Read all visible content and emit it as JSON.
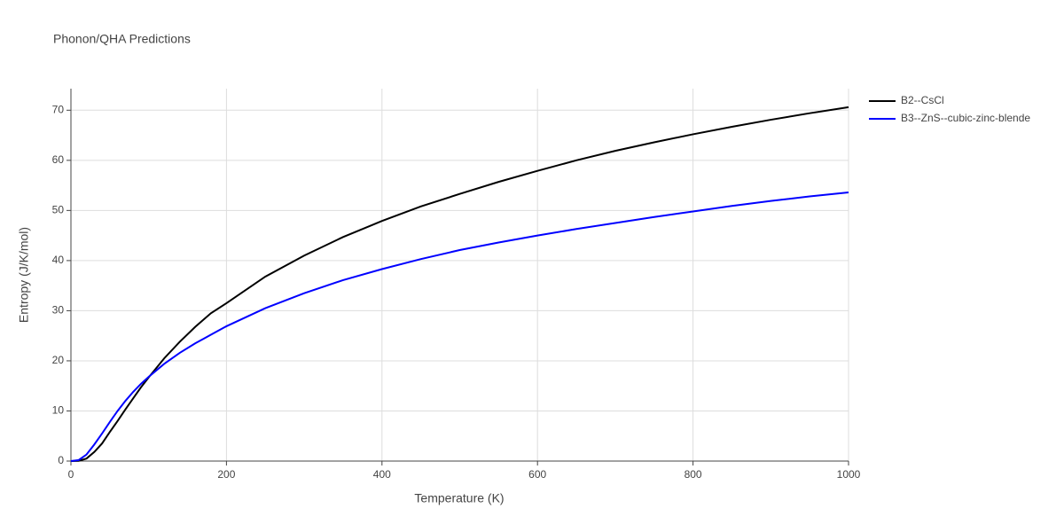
{
  "chart_data": {
    "type": "line",
    "title": "Phonon/QHA Predictions",
    "xlabel": "Temperature (K)",
    "ylabel": "Entropy (J/K/mol)",
    "x": [
      0,
      10,
      20,
      30,
      40,
      50,
      60,
      70,
      80,
      90,
      100,
      120,
      140,
      160,
      180,
      200,
      250,
      300,
      350,
      400,
      450,
      500,
      550,
      600,
      650,
      700,
      750,
      800,
      850,
      900,
      950,
      1000
    ],
    "series": [
      {
        "name": "B2--CsCl",
        "color": "#000000",
        "values": [
          0,
          0.05,
          0.5,
          1.8,
          3.5,
          5.8,
          8,
          10.3,
          12.5,
          14.7,
          16.7,
          20.5,
          23.8,
          26.8,
          29.5,
          31.5,
          36.8,
          41,
          44.7,
          47.9,
          50.8,
          53.3,
          55.7,
          57.9,
          60,
          61.9,
          63.6,
          65.2,
          66.7,
          68.1,
          69.4,
          70.6
        ]
      },
      {
        "name": "B3--ZnS--cubic-zinc-blende",
        "color": "#0000ff",
        "values": [
          0,
          0.2,
          1.3,
          3.3,
          5.5,
          7.8,
          10,
          12,
          13.8,
          15.4,
          16.8,
          19.4,
          21.6,
          23.5,
          25.2,
          26.9,
          30.5,
          33.5,
          36.1,
          38.3,
          40.3,
          42.1,
          43.6,
          45,
          46.3,
          47.5,
          48.7,
          49.8,
          50.9,
          51.9,
          52.8,
          53.6
        ]
      }
    ],
    "xlim": [
      0,
      1000
    ],
    "xticks": [
      0,
      200,
      400,
      600,
      800,
      1000
    ],
    "ylim": [
      0,
      74.3
    ],
    "yticks": [
      0,
      10,
      20,
      30,
      40,
      50,
      60,
      70
    ],
    "grid": true,
    "legend": "right"
  }
}
